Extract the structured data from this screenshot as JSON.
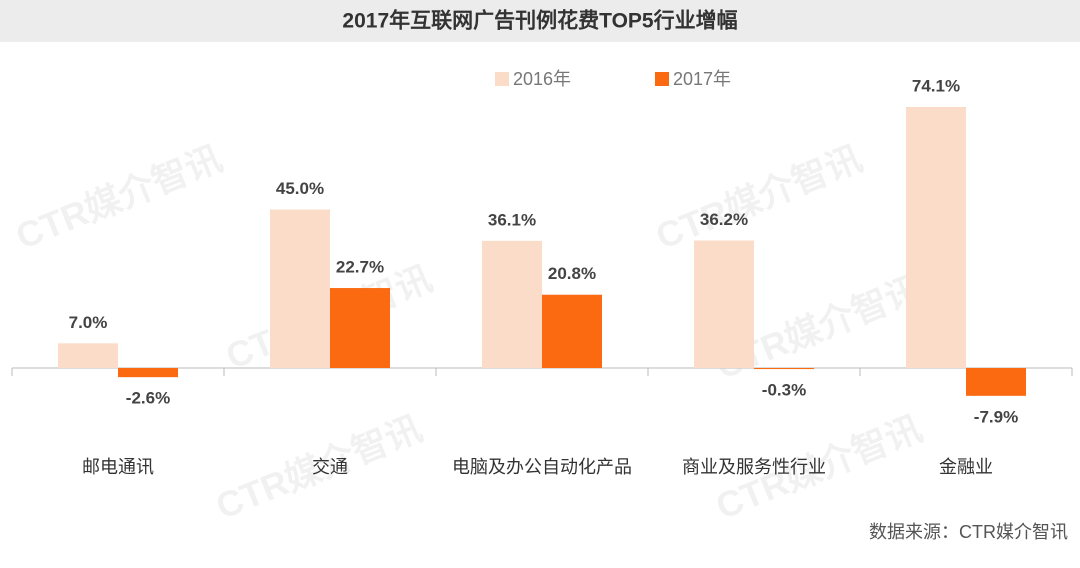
{
  "chart_data": {
    "type": "bar",
    "title": "2017年互联网广告刊例花费TOP5行业增幅",
    "categories": [
      "邮电通讯",
      "交通",
      "电脑及办公自动化产品",
      "商业及服务性行业",
      "金融业"
    ],
    "series": [
      {
        "name": "2016年",
        "color": "#fbdcc8",
        "values": [
          7.0,
          45.0,
          36.1,
          36.2,
          74.1
        ],
        "value_labels": [
          "7.0%",
          "45.0%",
          "36.1%",
          "36.2%",
          "74.1%"
        ]
      },
      {
        "name": "2017年",
        "color": "#fb6a10",
        "values": [
          -2.6,
          22.7,
          20.8,
          -0.3,
          -7.9
        ],
        "value_labels": [
          "-2.6%",
          "22.7%",
          "20.8%",
          "-0.3%",
          "-7.9%"
        ]
      }
    ],
    "source": "数据来源：CTR媒介智讯",
    "watermark": "CTR媒介智讯"
  }
}
